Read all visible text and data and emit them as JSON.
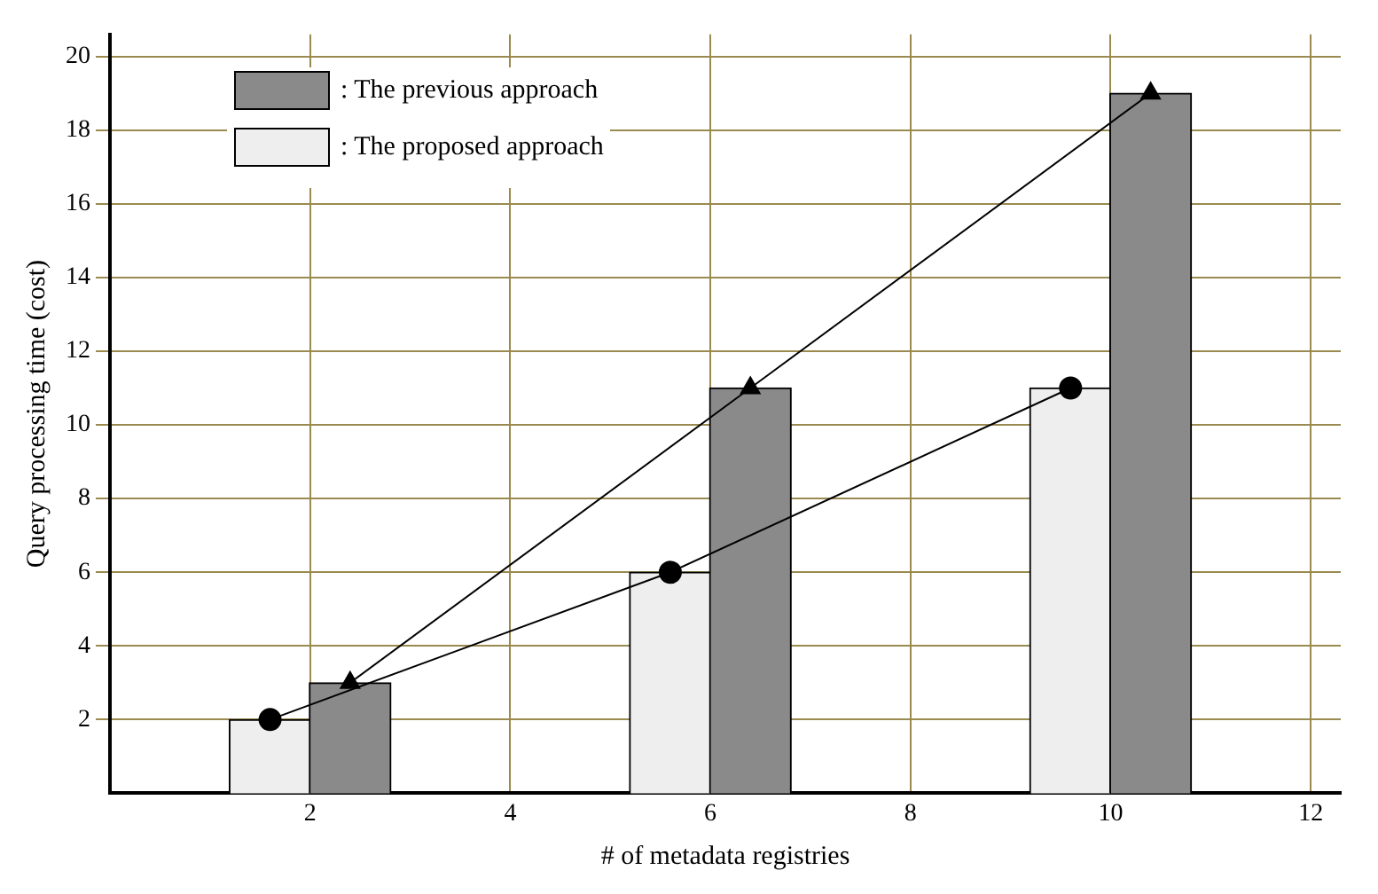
{
  "chart_data": {
    "type": "bar",
    "xlabel": "# of metadata registries",
    "ylabel": "Query processing time (cost)",
    "xlim": [
      0,
      12.3
    ],
    "ylim": [
      0,
      20.6
    ],
    "xticks": [
      2,
      4,
      6,
      8,
      10,
      12
    ],
    "yticks": [
      2,
      4,
      6,
      8,
      10,
      12,
      14,
      16,
      18,
      20
    ],
    "grid": true,
    "legend": "top left",
    "series": [
      {
        "name": ": The previous approach",
        "x": [
          2.4,
          6.4,
          10.4
        ],
        "values": [
          3,
          11,
          19
        ],
        "color": "#8a8a8a"
      },
      {
        "name": ": The proposed approach",
        "x": [
          1.6,
          5.6,
          9.6
        ],
        "values": [
          2,
          6,
          11
        ],
        "color": "#eeeeee"
      },
      {
        "type": "line",
        "x": [
          2.4,
          6.4,
          10.4
        ],
        "values": [
          3,
          11,
          19
        ],
        "color": "#000000",
        "marker": "triangle"
      },
      {
        "type": "line",
        "x": [
          1.6,
          5.6,
          9.6
        ],
        "values": [
          2,
          6,
          11
        ],
        "color": "#000000",
        "marker": "circle"
      }
    ]
  }
}
